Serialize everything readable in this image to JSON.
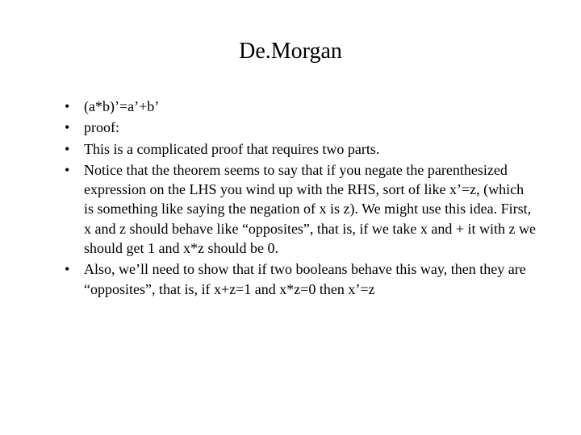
{
  "slide": {
    "title": "De.Morgan",
    "title_fontsize": 28,
    "body_fontsize": 18,
    "text_color": "#000000",
    "background_color": "#ffffff",
    "font_family": "Times New Roman",
    "bullets": [
      "(a*b)’=a’+b’",
      "proof:",
      "This is a complicated proof that requires two parts.",
      "Notice that the theorem seems to say that if you negate the parenthesized expression on the LHS you wind up with the RHS, sort of like x’=z,  (which is something like saying the negation of x is z).  We might use this idea.  First, x and z should behave like “opposites”, that is, if we take x and + it with z we should get 1 and x*z should be 0.",
      "Also, we’ll need to show that if two booleans behave this way, then they are “opposites”, that is, if x+z=1 and x*z=0 then x’=z"
    ]
  }
}
